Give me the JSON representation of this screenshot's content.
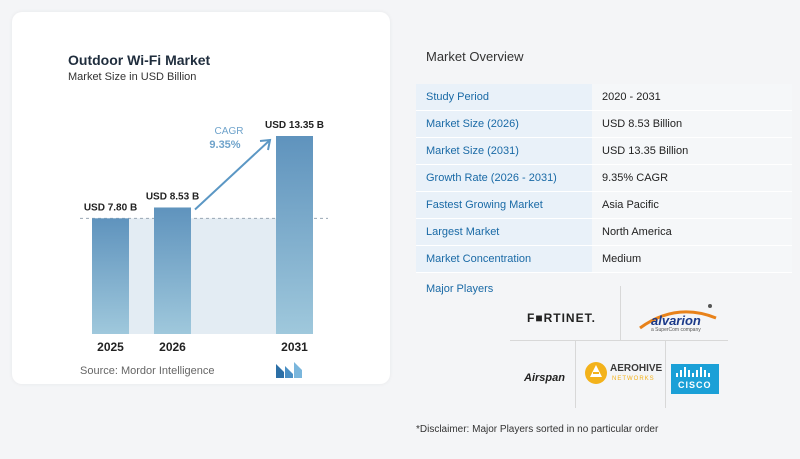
{
  "chart_data": {
    "type": "bar",
    "title": "Outdoor Wi-Fi Market",
    "subtitle": "Market Size in USD Billion",
    "categories": [
      "2025",
      "2026",
      "2031"
    ],
    "values": [
      7.8,
      8.53,
      13.35
    ],
    "value_labels": [
      "USD 7.80 B",
      "USD 8.53 B",
      "USD 13.35 B"
    ],
    "ylim": [
      0,
      14.5
    ],
    "grid": false,
    "annotation": {
      "label": "CAGR",
      "value": "9.35%"
    },
    "source": "Source:  Mordor Intelligence",
    "colors": {
      "bar_top": "#5f93bd",
      "bar_bottom": "#9fc8dc",
      "band": "#e3ecf3",
      "arrow": "#5b97c4",
      "cagr": "#6fa3cb"
    }
  },
  "overview": {
    "title": "Market Overview",
    "rows": [
      {
        "key": "Study Period",
        "value": "2020 - 2031"
      },
      {
        "key": "Market Size (2026)",
        "value": "USD 8.53 Billion"
      },
      {
        "key": "Market Size (2031)",
        "value": "USD 13.35 Billion"
      },
      {
        "key": "Growth Rate (2026 - 2031)",
        "value": "9.35% CAGR"
      },
      {
        "key": "Fastest Growing Market",
        "value": "Asia Pacific"
      },
      {
        "key": "Largest Market",
        "value": "North America"
      },
      {
        "key": "Market Concentration",
        "value": "Medium"
      }
    ],
    "players_label": "Major Players",
    "players": {
      "fortinet": "F■RTINET.",
      "alvarion": "alvarion",
      "alvarion_tag": "a SuperCom company",
      "airspan": "Airspan",
      "aerohive": "AEROHIVE",
      "aerohive_tag": "NETWORKS",
      "cisco": "CISCO"
    },
    "disclaimer": "*Disclaimer: Major Players sorted in no particular order"
  }
}
